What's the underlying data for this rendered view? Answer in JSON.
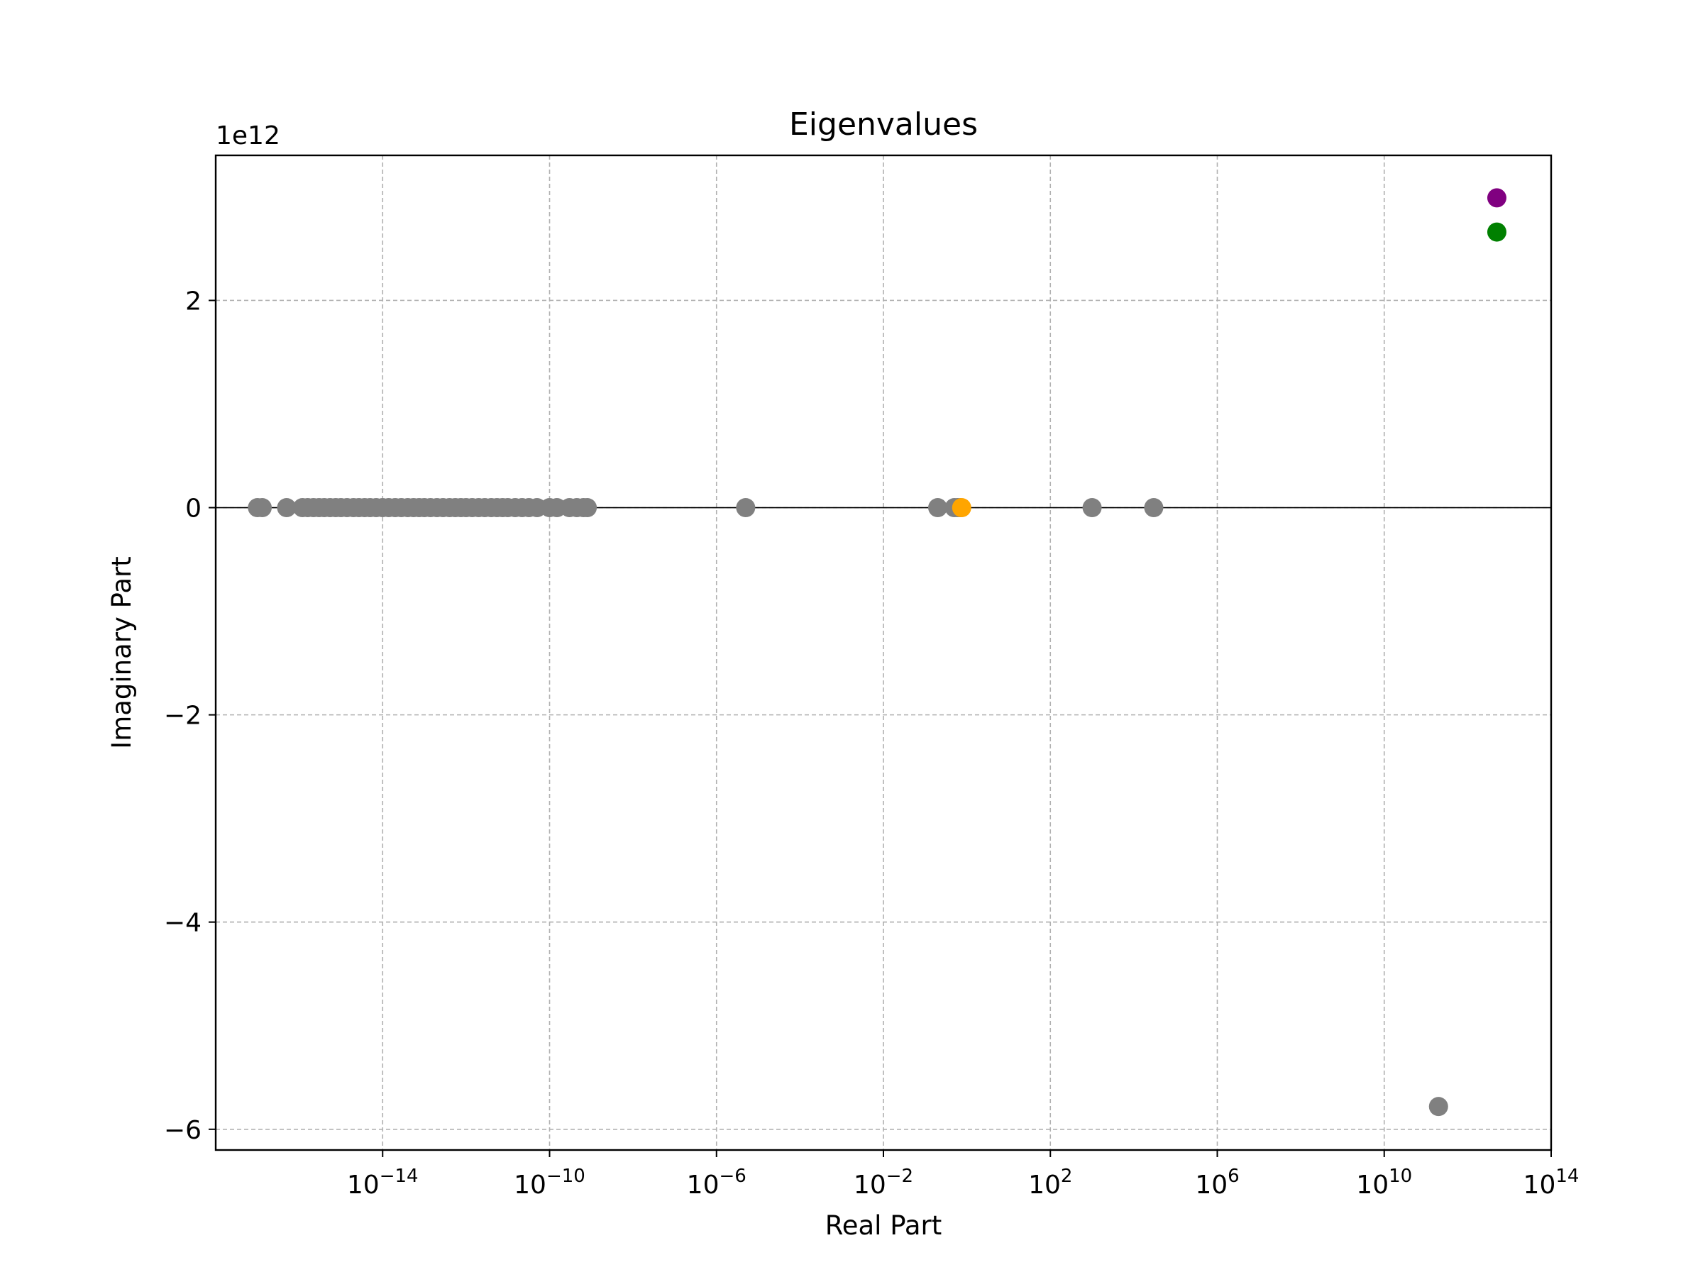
{
  "chart_data": {
    "type": "scatter",
    "title": "Eigenvalues",
    "xlabel": "Real Part",
    "ylabel": "Imaginary Part",
    "xscale": "log",
    "xlim": [
      1e-18,
      100000000000000.0
    ],
    "ylim": [
      -6200000000000.0,
      3400000000000.0
    ],
    "y_offset_text": "1e12",
    "grid": true,
    "x_ticks": [
      {
        "value": 1e-14,
        "base": "10",
        "exp": "−14"
      },
      {
        "value": 1e-10,
        "base": "10",
        "exp": "−10"
      },
      {
        "value": 1e-06,
        "base": "10",
        "exp": "−6"
      },
      {
        "value": 0.01,
        "base": "10",
        "exp": "−2"
      },
      {
        "value": 100.0,
        "base": "10",
        "exp": "2"
      },
      {
        "value": 1000000.0,
        "base": "10",
        "exp": "6"
      },
      {
        "value": 10000000000.0,
        "base": "10",
        "exp": "10"
      },
      {
        "value": 100000000000000.0,
        "base": "10",
        "exp": "14"
      }
    ],
    "y_ticks": [
      {
        "value": -6000000000000.0,
        "label": "−6"
      },
      {
        "value": -4000000000000.0,
        "label": "−4"
      },
      {
        "value": -2000000000000.0,
        "label": "−2"
      },
      {
        "value": 0,
        "label": "0"
      },
      {
        "value": 2000000000000.0,
        "label": "2"
      }
    ],
    "reference_line_y": 0,
    "series": [
      {
        "color": "#808080",
        "points": [
          {
            "x": 1e-17,
            "y": 0
          },
          {
            "x": 1.3e-17,
            "y": 0
          },
          {
            "x": 5e-17,
            "y": 0
          },
          {
            "x": 1.2e-16,
            "y": 0
          },
          {
            "x": 1.6e-16,
            "y": 0
          },
          {
            "x": 2.2e-16,
            "y": 0
          },
          {
            "x": 3e-16,
            "y": 0
          },
          {
            "x": 4e-16,
            "y": 0
          },
          {
            "x": 5.5e-16,
            "y": 0
          },
          {
            "x": 7.5e-16,
            "y": 0
          },
          {
            "x": 1e-15,
            "y": 0
          },
          {
            "x": 1.4e-15,
            "y": 0
          },
          {
            "x": 2e-15,
            "y": 0
          },
          {
            "x": 2.7e-15,
            "y": 0
          },
          {
            "x": 3.7e-15,
            "y": 0
          },
          {
            "x": 5e-15,
            "y": 0
          },
          {
            "x": 7e-15,
            "y": 0
          },
          {
            "x": 1e-14,
            "y": 0
          },
          {
            "x": 1.4e-14,
            "y": 0
          },
          {
            "x": 2e-14,
            "y": 0
          },
          {
            "x": 2.8e-14,
            "y": 0
          },
          {
            "x": 4e-14,
            "y": 0
          },
          {
            "x": 5.5e-14,
            "y": 0
          },
          {
            "x": 7.5e-14,
            "y": 0
          },
          {
            "x": 1e-13,
            "y": 0
          },
          {
            "x": 1.4e-13,
            "y": 0
          },
          {
            "x": 2e-13,
            "y": 0
          },
          {
            "x": 2.8e-13,
            "y": 0
          },
          {
            "x": 4e-13,
            "y": 0
          },
          {
            "x": 5.5e-13,
            "y": 0
          },
          {
            "x": 7.5e-13,
            "y": 0
          },
          {
            "x": 1e-12,
            "y": 0
          },
          {
            "x": 1.4e-12,
            "y": 0
          },
          {
            "x": 2e-12,
            "y": 0
          },
          {
            "x": 2.8e-12,
            "y": 0
          },
          {
            "x": 4e-12,
            "y": 0
          },
          {
            "x": 5.5e-12,
            "y": 0
          },
          {
            "x": 7.5e-12,
            "y": 0
          },
          {
            "x": 1e-11,
            "y": 0
          },
          {
            "x": 1.5e-11,
            "y": 0
          },
          {
            "x": 2.2e-11,
            "y": 0
          },
          {
            "x": 3.2e-11,
            "y": 0
          },
          {
            "x": 5e-11,
            "y": 0
          },
          {
            "x": 1e-10,
            "y": 0
          },
          {
            "x": 1.5e-10,
            "y": 0
          },
          {
            "x": 3e-10,
            "y": 0
          },
          {
            "x": 4.5e-10,
            "y": 0
          },
          {
            "x": 6.5e-10,
            "y": 0
          },
          {
            "x": 8e-10,
            "y": 0
          },
          {
            "x": 5e-06,
            "y": 0
          },
          {
            "x": 0.2,
            "y": 0
          },
          {
            "x": 0.5,
            "y": 0
          },
          {
            "x": 0.6,
            "y": 0
          },
          {
            "x": 0.7,
            "y": 0
          },
          {
            "x": 1000,
            "y": 0
          },
          {
            "x": 30000,
            "y": 0
          },
          {
            "x": 200000000000.0,
            "y": -5780000000000.0
          }
        ]
      },
      {
        "color": "#ffa500",
        "points": [
          {
            "x": 0.75,
            "y": 0
          }
        ]
      },
      {
        "color": "#008000",
        "points": [
          {
            "x": 5000000000000.0,
            "y": 2660000000000.0
          }
        ]
      },
      {
        "color": "#800080",
        "points": [
          {
            "x": 5000000000000.0,
            "y": 2990000000000.0
          }
        ]
      }
    ]
  }
}
